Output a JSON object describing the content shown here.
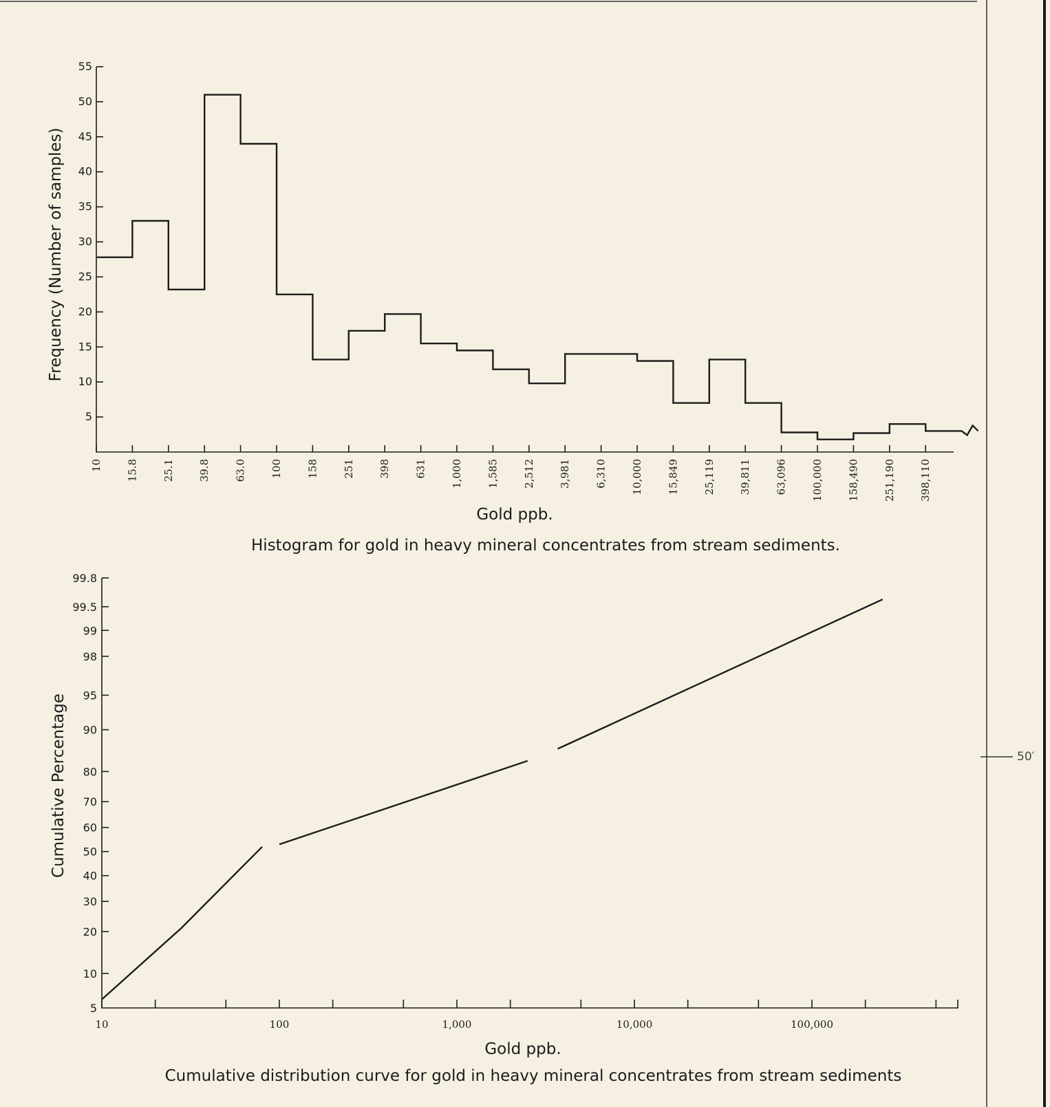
{
  "margin_label": "50′",
  "chart_data": [
    {
      "type": "bar",
      "title": "Histogram for gold in heavy mineral concentrates from stream sediments.",
      "xlabel": "Gold ppb.",
      "ylabel": "Frequency (Number of samples)",
      "ylim": [
        0,
        55
      ],
      "yticks": [
        "5",
        "10",
        "15",
        "20",
        "25",
        "30",
        "35",
        "40",
        "45",
        "50",
        "55"
      ],
      "categories": [
        "10",
        "15.8",
        "25.1",
        "39.8",
        "63.0",
        "100",
        "158",
        "251",
        "398",
        "631",
        "1,000",
        "1,585",
        "2,512",
        "3,981",
        "6,310",
        "10,000",
        "15,849",
        "25,119",
        "39,811",
        "63,096",
        "100,000",
        "158,490",
        "251,190",
        "398,110"
      ],
      "values": [
        27.8,
        33,
        23.2,
        51,
        44,
        22.5,
        13.2,
        17.3,
        19.7,
        15.5,
        14.5,
        11.8,
        9.8,
        14,
        14,
        13,
        7,
        13.2,
        7,
        2.8,
        1.8,
        2.7,
        4,
        3
      ],
      "grid": false,
      "legend": "none"
    },
    {
      "type": "line",
      "title": "Cumulative distribution curve for gold in heavy mineral concentrates from stream sediments",
      "xlabel": "Gold ppb.",
      "ylabel": "Cumulative Percentage",
      "x_scale": "log",
      "xlim": [
        10,
        500000
      ],
      "xticks": [
        "10",
        "100",
        "1,000",
        "10,000",
        "100,000"
      ],
      "y_scale": "probability",
      "ylim": [
        5,
        99.8
      ],
      "yticks": [
        "5",
        "10",
        "20",
        "30",
        "40",
        "50",
        "60",
        "70",
        "80",
        "90",
        "95",
        "98",
        "99",
        "99.5",
        "99.8"
      ],
      "series": [
        {
          "x": [
            10,
            28,
            80
          ],
          "y": [
            6,
            21,
            52
          ]
        },
        {
          "x": [
            100,
            2500
          ],
          "y": [
            53,
            83
          ]
        },
        {
          "x": [
            3700,
            250000
          ],
          "y": [
            86,
            99.6
          ]
        }
      ],
      "grid": false,
      "legend": "none"
    }
  ]
}
